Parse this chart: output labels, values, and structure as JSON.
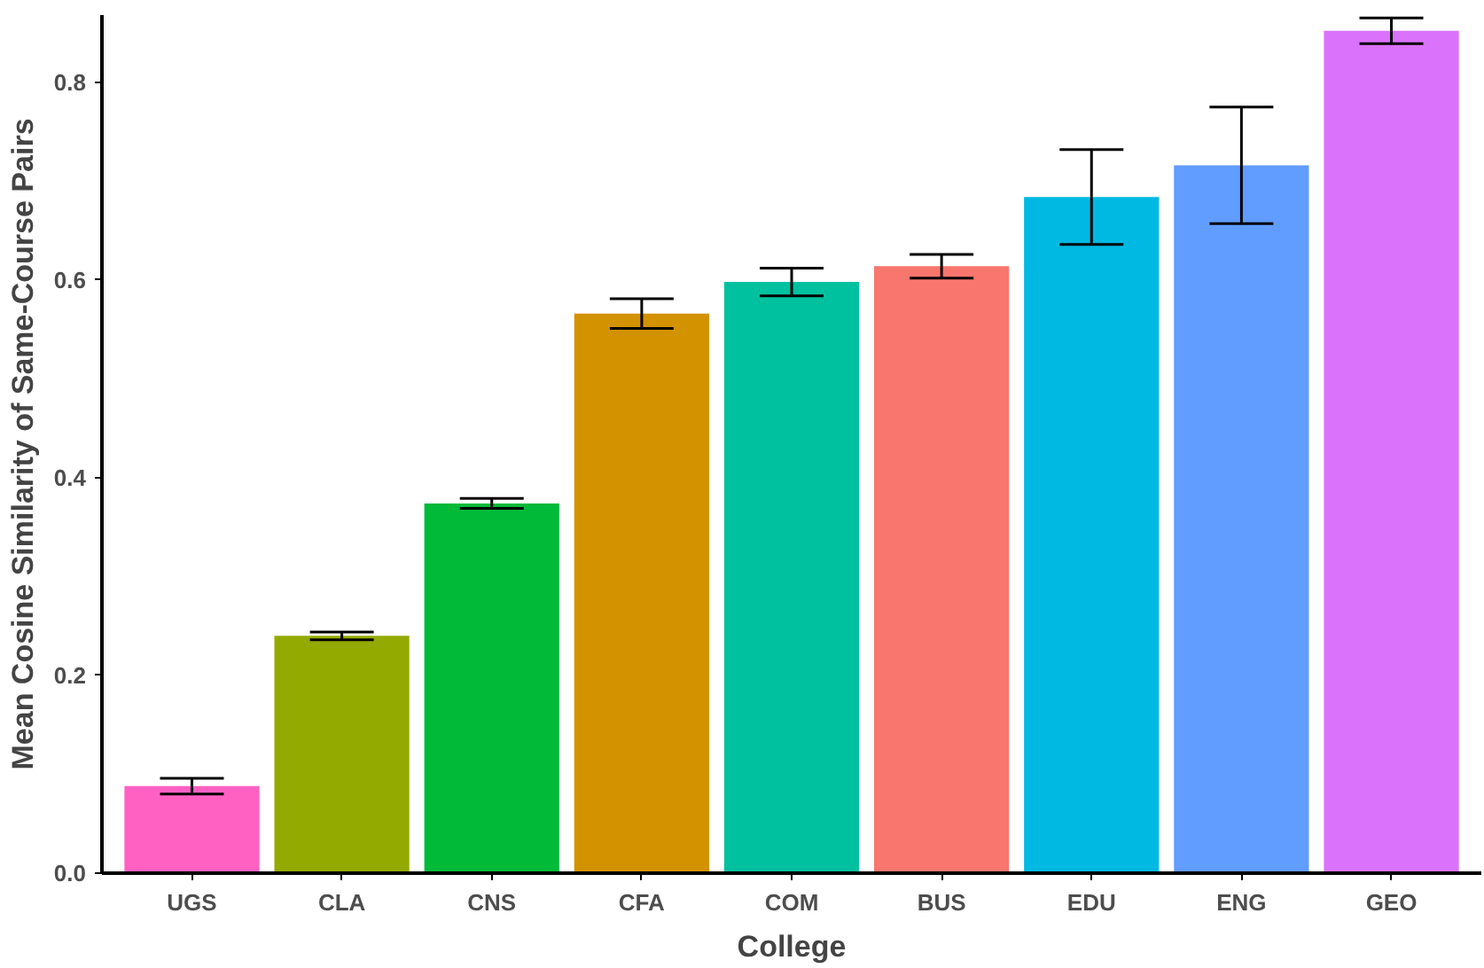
{
  "chart_data": {
    "type": "bar",
    "xlabel": "College",
    "ylabel": "Mean Cosine Similarity of Same-Course Pairs",
    "categories": [
      "UGS",
      "CLA",
      "CNS",
      "CFA",
      "COM",
      "BUS",
      "EDU",
      "ENG",
      "GEO"
    ],
    "values": [
      0.088,
      0.24,
      0.374,
      0.566,
      0.598,
      0.614,
      0.684,
      0.716,
      0.852
    ],
    "errors": [
      0.008,
      0.004,
      0.005,
      0.015,
      0.014,
      0.012,
      0.048,
      0.059,
      0.013
    ],
    "colors": [
      "#ff61c3",
      "#93aa00",
      "#00ba38",
      "#d39200",
      "#00c19f",
      "#f8766d",
      "#00b9e3",
      "#619cff",
      "#db72fb"
    ],
    "ylim": [
      0,
      0.868
    ],
    "yticks": [
      {
        "value": 0,
        "label": "0.0"
      },
      0.2,
      0.4,
      0.6,
      0.8
    ],
    "grid": false
  }
}
